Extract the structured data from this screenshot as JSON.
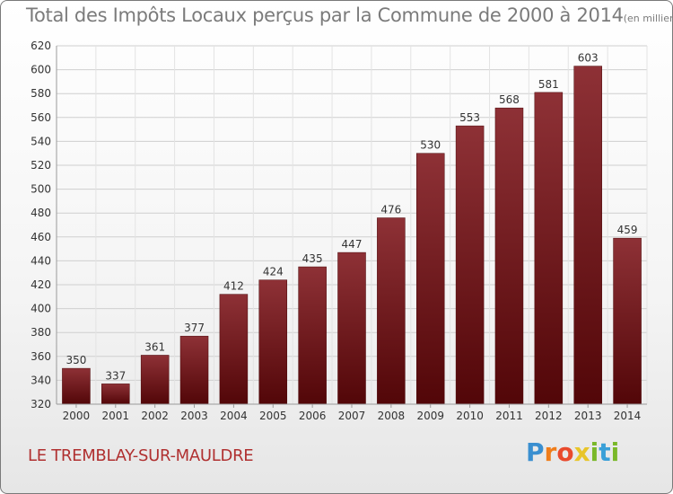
{
  "header": {
    "title": "Total des Impôts Locaux perçus par la Commune de 2000 à 2014",
    "unit_note": "(en milliers d'€)"
  },
  "footer": {
    "commune": "LE TREMBLAY-SUR-MAULDRE",
    "logo_letters": [
      "P",
      "r",
      "o",
      "x",
      "i",
      "t",
      "i"
    ]
  },
  "colors": {
    "bar": "#8b2a2f",
    "bar_dark": "#5a0b0e",
    "title": "#7b7b7b",
    "commune": "#b03030"
  },
  "chart_data": {
    "type": "bar",
    "title": "Total des Impôts Locaux perçus par la Commune de 2000 à 2014",
    "categories": [
      "2000",
      "2001",
      "2002",
      "2003",
      "2004",
      "2005",
      "2006",
      "2007",
      "2008",
      "2009",
      "2010",
      "2011",
      "2012",
      "2013",
      "2014"
    ],
    "values": [
      350,
      337,
      361,
      377,
      412,
      424,
      435,
      447,
      476,
      530,
      553,
      568,
      581,
      603,
      459
    ],
    "ylim": [
      320,
      620
    ],
    "yticks": [
      320,
      340,
      360,
      380,
      400,
      420,
      440,
      460,
      480,
      500,
      520,
      540,
      560,
      580,
      600,
      620
    ],
    "grid": true,
    "data_labels": true
  }
}
